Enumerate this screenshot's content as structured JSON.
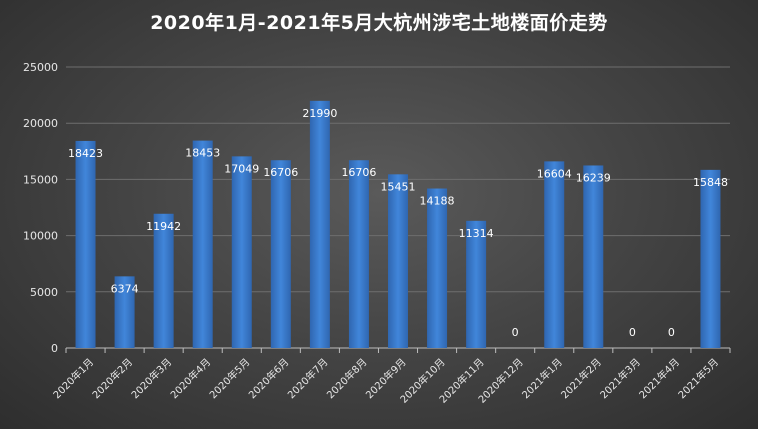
{
  "chart_data": {
    "type": "bar",
    "title": "2020年1月-2021年5月大杭州涉宅土地楼面价走势",
    "xlabel": "",
    "ylabel": "",
    "ylim": [
      0,
      25000
    ],
    "yticks": [
      0,
      5000,
      10000,
      15000,
      20000,
      25000
    ],
    "grid": true,
    "legend": "none",
    "categories": [
      "2020年1月",
      "2020年2月",
      "2020年3月",
      "2020年4月",
      "2020年5月",
      "2020年6月",
      "2020年7月",
      "2020年8月",
      "2020年9月",
      "2020年10月",
      "2020年11月",
      "2020年12月",
      "2021年1月",
      "2021年2月",
      "2021年3月",
      "2021年4月",
      "2021年5月"
    ],
    "values": [
      18423,
      6374,
      11942,
      18453,
      17049,
      16706,
      21990,
      16706,
      15451,
      14188,
      11314,
      0,
      16604,
      16239,
      0,
      0,
      15848
    ],
    "bar_color": "#3a78c8"
  }
}
